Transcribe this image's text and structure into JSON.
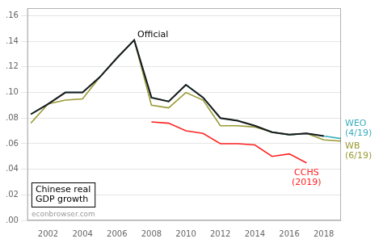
{
  "chart_data": {
    "type": "line",
    "series": [
      {
        "name": "Official",
        "color": "#1a1a1a",
        "x": [
          2001,
          2002,
          2003,
          2004,
          2005,
          2006,
          2007,
          2008,
          2009,
          2010,
          2011,
          2012,
          2013,
          2014,
          2015,
          2016,
          2017,
          2018
        ],
        "values": [
          0.083,
          0.091,
          0.1,
          0.1,
          0.112,
          0.127,
          0.141,
          0.096,
          0.093,
          0.106,
          0.096,
          0.08,
          0.078,
          0.074,
          0.069,
          0.067,
          0.068,
          0.066
        ]
      },
      {
        "name": "WEO\n(4/19)",
        "color": "#3aaebd",
        "x": [
          2001,
          2002,
          2003,
          2004,
          2005,
          2006,
          2007,
          2008,
          2009,
          2010,
          2011,
          2012,
          2013,
          2014,
          2015,
          2016,
          2017,
          2018,
          2019
        ],
        "values": [
          0.083,
          0.091,
          0.1,
          0.1,
          0.112,
          0.127,
          0.141,
          0.096,
          0.093,
          0.106,
          0.096,
          0.08,
          0.078,
          0.074,
          0.069,
          0.067,
          0.068,
          0.066,
          0.064
        ]
      },
      {
        "name": "WB\n(6/19)",
        "color": "#999933",
        "x": [
          2001,
          2002,
          2003,
          2004,
          2005,
          2006,
          2007,
          2008,
          2009,
          2010,
          2011,
          2012,
          2013,
          2014,
          2015,
          2016,
          2017,
          2018,
          2019
        ],
        "values": [
          0.076,
          0.091,
          0.094,
          0.095,
          0.112,
          0.127,
          0.141,
          0.09,
          0.088,
          0.1,
          0.094,
          0.074,
          0.074,
          0.073,
          0.069,
          0.067,
          0.068,
          0.063,
          0.062
        ]
      },
      {
        "name": "CCHS\n(2019)",
        "color": "#ff2222",
        "x": [
          2008,
          2009,
          2010,
          2011,
          2012,
          2013,
          2014,
          2015,
          2016,
          2017
        ],
        "values": [
          0.077,
          0.076,
          0.07,
          0.068,
          0.06,
          0.06,
          0.059,
          0.05,
          0.052,
          0.045
        ]
      }
    ],
    "xlim": [
      2000.8,
      2019.0
    ],
    "xticks": [
      2002,
      2004,
      2006,
      2008,
      2010,
      2012,
      2014,
      2016,
      2018
    ],
    "ylim": [
      0.0,
      0.166
    ],
    "yticks": [
      {
        "value": 0.0,
        "label": ".00"
      },
      {
        "value": 0.02,
        "label": ".02"
      },
      {
        "value": 0.04,
        "label": ".04"
      },
      {
        "value": 0.06,
        "label": ".06"
      },
      {
        "value": 0.08,
        "label": ".08"
      },
      {
        "value": 0.1,
        "label": ".10"
      },
      {
        "value": 0.12,
        "label": ".12"
      },
      {
        "value": 0.14,
        "label": ".14"
      },
      {
        "value": 0.16,
        "label": ".16"
      }
    ],
    "grid": "y",
    "annotations": [
      "Chinese real\nGDP growth",
      "econbrowser.com"
    ]
  }
}
